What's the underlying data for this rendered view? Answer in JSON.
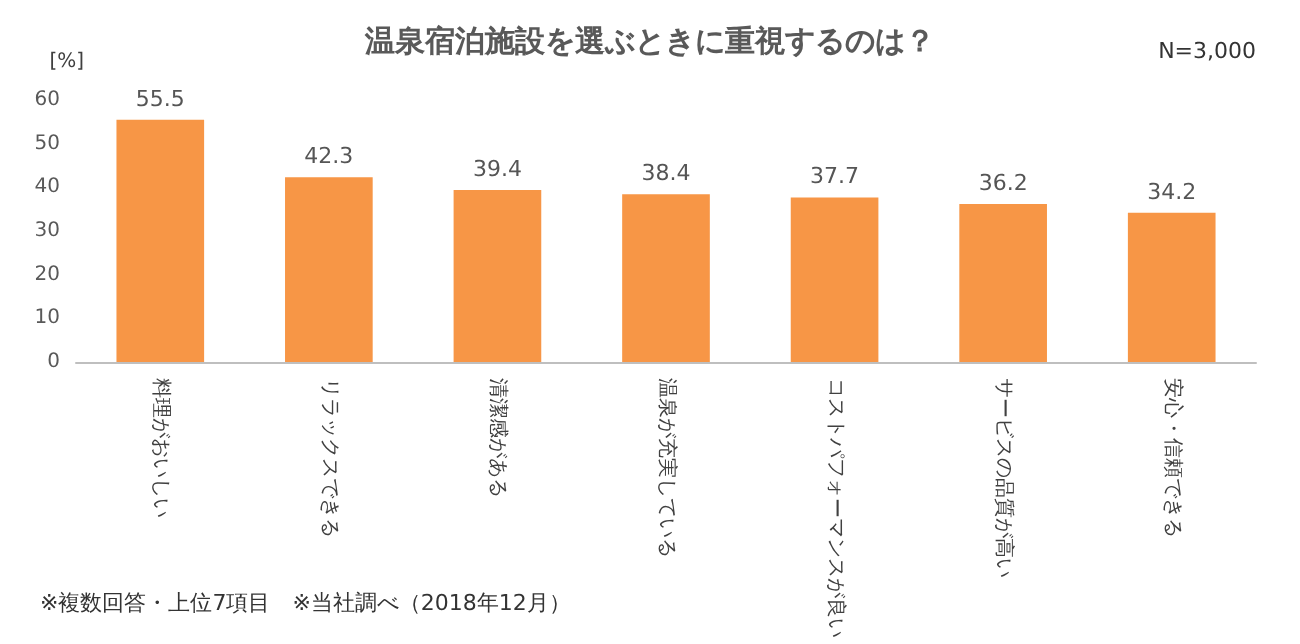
{
  "chart_data": {
    "type": "bar",
    "title": "温泉宿泊施設を選ぶときに重視するのは？",
    "ylabel": "[%]",
    "annotations": [
      "N=3,000",
      "※複数回答・上位7項目　※当社調べ（2018年12月）"
    ],
    "categories": [
      "料理がおいしい",
      "リラックスできる",
      "清潔感がある",
      "温泉が充実している",
      "コストパフォーマンスが良い",
      "サービスの品質が高い",
      "安心・信頼できる"
    ],
    "values": [
      55.5,
      42.3,
      39.4,
      38.4,
      37.7,
      36.2,
      34.2
    ],
    "color": "#f79646",
    "ylim": [
      0,
      60
    ],
    "yticks": [
      0,
      10,
      20,
      30,
      40,
      50,
      60
    ],
    "grid": false,
    "data_labels": true
  }
}
